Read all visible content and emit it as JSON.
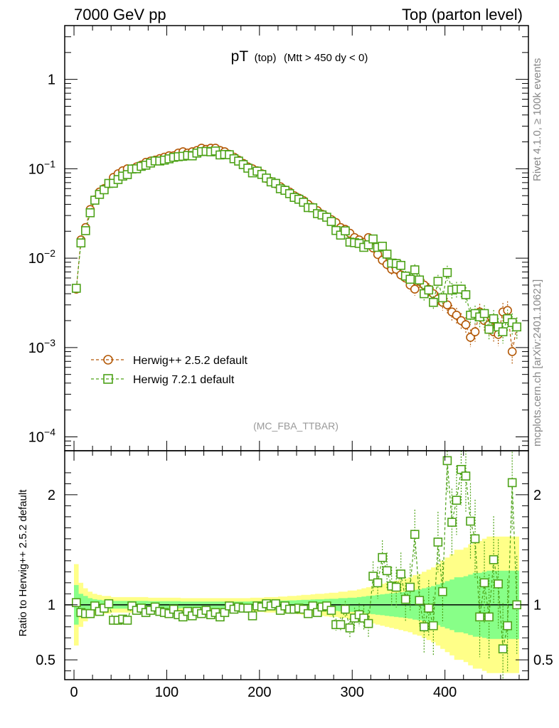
{
  "header": {
    "left": "7000 GeV pp",
    "right": "Top (parton level)"
  },
  "side": {
    "top": "Rivet 4.1.0, ≥ 100k events",
    "bottom": "mcplots.cern.ch [arXiv:2401.10621]"
  },
  "colors": {
    "herwigpp": "#b35806",
    "herwig7": "#4da218",
    "band_yellow": "#ffff88",
    "band_green": "#88ff88"
  },
  "chart_data": {
    "type": "scatter",
    "title": {
      "main": "pT",
      "sub1": "(top)",
      "sub2": "(Mtt > 450 dy < 0)"
    },
    "watermark": "(MC_FBA_TTBAR)",
    "xlim": [
      -10,
      490
    ],
    "ylim_main": [
      7e-05,
      4
    ],
    "ylim_ratio": [
      0.32,
      2.4
    ],
    "xticks": [
      0,
      100,
      200,
      300,
      400
    ],
    "yticks_main": [
      {
        "base": "10",
        "exp": "−4",
        "value": 0.0001
      },
      {
        "base": "10",
        "exp": "−3",
        "value": 0.001
      },
      {
        "base": "10",
        "exp": "−2",
        "value": 0.01
      },
      {
        "base": "10",
        "exp": "−1",
        "value": 0.1
      },
      {
        "base": "1",
        "exp": "",
        "value": 1
      }
    ],
    "yticks_ratio": [
      {
        "label": "0.5",
        "value": 0.5
      },
      {
        "label": "1",
        "value": 1
      },
      {
        "label": "2",
        "value": 2
      }
    ],
    "ratio_ylabel": "Ratio to Herwig++ 2.5.2 default",
    "bin_width": 5,
    "legend": [
      "Herwig++ 2.5.2 default",
      "Herwig 7.2.1 default"
    ],
    "series": [
      {
        "name": "Herwig++ 2.5.2 default",
        "marker": "circle",
        "x": [
          2.5,
          7.5,
          12.5,
          17.5,
          22.5,
          27.5,
          32.5,
          37.5,
          42.5,
          47.5,
          52.5,
          57.5,
          62.5,
          67.5,
          72.5,
          77.5,
          82.5,
          87.5,
          92.5,
          97.5,
          102.5,
          107.5,
          112.5,
          117.5,
          122.5,
          127.5,
          132.5,
          137.5,
          142.5,
          147.5,
          152.5,
          157.5,
          162.5,
          167.5,
          172.5,
          177.5,
          182.5,
          187.5,
          192.5,
          197.5,
          202.5,
          207.5,
          212.5,
          217.5,
          222.5,
          227.5,
          232.5,
          237.5,
          242.5,
          247.5,
          252.5,
          257.5,
          262.5,
          267.5,
          272.5,
          277.5,
          282.5,
          287.5,
          292.5,
          297.5,
          302.5,
          307.5,
          312.5,
          317.5,
          322.5,
          327.5,
          332.5,
          337.5,
          342.5,
          347.5,
          352.5,
          357.5,
          362.5,
          367.5,
          372.5,
          377.5,
          382.5,
          387.5,
          392.5,
          397.5,
          402.5,
          407.5,
          412.5,
          417.5,
          422.5,
          427.5,
          432.5,
          437.5,
          442.5,
          447.5,
          452.5,
          457.5,
          462.5,
          467.5,
          472.5,
          477.5
        ],
        "y": [
          0.0045,
          0.016,
          0.022,
          0.035,
          0.045,
          0.055,
          0.06,
          0.068,
          0.08,
          0.088,
          0.095,
          0.1,
          0.1,
          0.105,
          0.11,
          0.118,
          0.122,
          0.125,
          0.13,
          0.135,
          0.14,
          0.14,
          0.15,
          0.155,
          0.15,
          0.155,
          0.16,
          0.17,
          0.165,
          0.17,
          0.17,
          0.16,
          0.155,
          0.145,
          0.135,
          0.125,
          0.115,
          0.105,
          0.1,
          0.095,
          0.088,
          0.078,
          0.072,
          0.068,
          0.063,
          0.058,
          0.055,
          0.05,
          0.047,
          0.044,
          0.04,
          0.037,
          0.034,
          0.031,
          0.029,
          0.027,
          0.025,
          0.022,
          0.021,
          0.019,
          0.017,
          0.016,
          0.015,
          0.017,
          0.013,
          0.011,
          0.0095,
          0.0085,
          0.0075,
          0.0075,
          0.0065,
          0.006,
          0.005,
          0.0045,
          0.0055,
          0.005,
          0.0045,
          0.004,
          0.0035,
          0.0032,
          0.003,
          0.0025,
          0.0023,
          0.002,
          0.0018,
          0.0013,
          0.0015,
          0.0025,
          0.002,
          0.0018,
          0.0015,
          0.0014,
          0.0025,
          0.0026,
          0.0009,
          0.0017
        ]
      },
      {
        "name": "Herwig 7.2.1 default",
        "marker": "square",
        "x": [
          2.5,
          7.5,
          12.5,
          17.5,
          22.5,
          27.5,
          32.5,
          37.5,
          42.5,
          47.5,
          52.5,
          57.5,
          62.5,
          67.5,
          72.5,
          77.5,
          82.5,
          87.5,
          92.5,
          97.5,
          102.5,
          107.5,
          112.5,
          117.5,
          122.5,
          127.5,
          132.5,
          137.5,
          142.5,
          147.5,
          152.5,
          157.5,
          162.5,
          167.5,
          172.5,
          177.5,
          182.5,
          187.5,
          192.5,
          197.5,
          202.5,
          207.5,
          212.5,
          217.5,
          222.5,
          227.5,
          232.5,
          237.5,
          242.5,
          247.5,
          252.5,
          257.5,
          262.5,
          267.5,
          272.5,
          277.5,
          282.5,
          287.5,
          292.5,
          297.5,
          302.5,
          307.5,
          312.5,
          317.5,
          322.5,
          327.5,
          332.5,
          337.5,
          342.5,
          347.5,
          352.5,
          357.5,
          362.5,
          367.5,
          372.5,
          377.5,
          382.5,
          387.5,
          392.5,
          397.5,
          402.5,
          407.5,
          412.5,
          417.5,
          422.5,
          427.5,
          432.5,
          437.5,
          442.5,
          447.5,
          452.5,
          457.5,
          462.5,
          467.5,
          472.5,
          477.5
        ],
        "y": [
          0.0046,
          0.0148,
          0.0203,
          0.0322,
          0.0445,
          0.0517,
          0.0582,
          0.0686,
          0.0688,
          0.0757,
          0.0828,
          0.086,
          0.0994,
          0.1,
          0.1065,
          0.1097,
          0.1159,
          0.1224,
          0.1222,
          0.125,
          0.1292,
          0.1343,
          0.1365,
          0.1379,
          0.1409,
          0.1394,
          0.1498,
          0.1557,
          0.1565,
          0.1547,
          0.1581,
          0.1428,
          0.1447,
          0.1436,
          0.1295,
          0.1219,
          0.1113,
          0.1015,
          0.09,
          0.0941,
          0.0864,
          0.0787,
          0.0713,
          0.0687,
          0.0598,
          0.0574,
          0.0527,
          0.0478,
          0.0456,
          0.0422,
          0.0368,
          0.0366,
          0.0315,
          0.0304,
          0.0287,
          0.0257,
          0.0204,
          0.0181,
          0.0202,
          0.0151,
          0.0149,
          0.0146,
          0.0132,
          0.0141,
          0.0164,
          0.0132,
          0.0136,
          0.0111,
          0.0088,
          0.0087,
          0.0083,
          0.0063,
          0.0058,
          0.0074,
          0.0057,
          0.004,
          0.0044,
          0.0032,
          0.0055,
          0.0036,
          0.0069,
          0.0044,
          0.0045,
          0.0045,
          0.0039,
          0.0023,
          0.0024,
          0.0022,
          0.0024,
          0.0016,
          0.0021,
          0.0017,
          0.0015,
          0.0021,
          0.0019,
          0.0017
        ]
      }
    ],
    "ratio": [
      1.02,
      0.93,
      0.92,
      0.92,
      0.99,
      0.94,
      0.97,
      1.01,
      0.86,
      0.86,
      0.87,
      0.86,
      0.99,
      0.95,
      0.97,
      0.93,
      0.95,
      0.98,
      0.94,
      0.93,
      0.92,
      0.96,
      0.91,
      0.89,
      0.94,
      0.9,
      0.94,
      0.92,
      0.95,
      0.91,
      0.93,
      0.89,
      0.93,
      0.99,
      0.96,
      0.98,
      0.97,
      0.97,
      0.9,
      0.99,
      0.98,
      1.01,
      0.99,
      1.01,
      0.95,
      0.99,
      0.96,
      0.96,
      0.97,
      0.96,
      0.92,
      0.99,
      0.93,
      0.98,
      0.99,
      0.95,
      0.82,
      0.82,
      0.96,
      0.79,
      0.88,
      0.91,
      0.88,
      0.83,
      1.26,
      1.2,
      1.43,
      1.31,
      1.17,
      1.16,
      1.28,
      1.05,
      1.16,
      1.64,
      1.04,
      0.8,
      0.97,
      0.81,
      1.57,
      1.12,
      2.31,
      1.75,
      1.95,
      2.23,
      2.17,
      1.76,
      1.6,
      0.89,
      1.2,
      0.89,
      1.41,
      1.19,
      0.6,
      0.81,
      2.11,
      1.0
    ],
    "band_outer": [
      0.37,
      0.2,
      0.15,
      0.12,
      0.1,
      0.09,
      0.08,
      0.08,
      0.07,
      0.07,
      0.07,
      0.07,
      0.07,
      0.07,
      0.07,
      0.07,
      0.065,
      0.065,
      0.065,
      0.065,
      0.065,
      0.065,
      0.065,
      0.06,
      0.06,
      0.06,
      0.06,
      0.06,
      0.06,
      0.06,
      0.06,
      0.06,
      0.06,
      0.06,
      0.06,
      0.06,
      0.06,
      0.06,
      0.065,
      0.065,
      0.065,
      0.07,
      0.07,
      0.07,
      0.075,
      0.075,
      0.08,
      0.08,
      0.085,
      0.09,
      0.09,
      0.095,
      0.1,
      0.1,
      0.105,
      0.11,
      0.11,
      0.12,
      0.12,
      0.13,
      0.13,
      0.14,
      0.15,
      0.16,
      0.17,
      0.18,
      0.19,
      0.2,
      0.21,
      0.22,
      0.23,
      0.24,
      0.25,
      0.27,
      0.28,
      0.3,
      0.32,
      0.34,
      0.37,
      0.4,
      0.43,
      0.46,
      0.5,
      0.5,
      0.52,
      0.55,
      0.58,
      0.58,
      0.6,
      0.62,
      0.62,
      0.62,
      0.62,
      0.62,
      0.62,
      0.62
    ],
    "band_inner": [
      0.18,
      0.1,
      0.08,
      0.06,
      0.05,
      0.045,
      0.04,
      0.04,
      0.035,
      0.035,
      0.035,
      0.035,
      0.035,
      0.035,
      0.035,
      0.035,
      0.033,
      0.033,
      0.033,
      0.033,
      0.033,
      0.033,
      0.033,
      0.03,
      0.03,
      0.03,
      0.03,
      0.03,
      0.03,
      0.03,
      0.03,
      0.03,
      0.03,
      0.03,
      0.03,
      0.03,
      0.03,
      0.03,
      0.033,
      0.033,
      0.033,
      0.035,
      0.035,
      0.035,
      0.038,
      0.038,
      0.04,
      0.04,
      0.043,
      0.045,
      0.045,
      0.048,
      0.05,
      0.05,
      0.053,
      0.055,
      0.055,
      0.06,
      0.06,
      0.065,
      0.065,
      0.07,
      0.075,
      0.08,
      0.085,
      0.09,
      0.095,
      0.1,
      0.105,
      0.11,
      0.115,
      0.12,
      0.125,
      0.135,
      0.14,
      0.15,
      0.16,
      0.17,
      0.185,
      0.2,
      0.215,
      0.23,
      0.25,
      0.25,
      0.26,
      0.275,
      0.29,
      0.29,
      0.3,
      0.31,
      0.31,
      0.31,
      0.31,
      0.31,
      0.31,
      0.31
    ]
  }
}
